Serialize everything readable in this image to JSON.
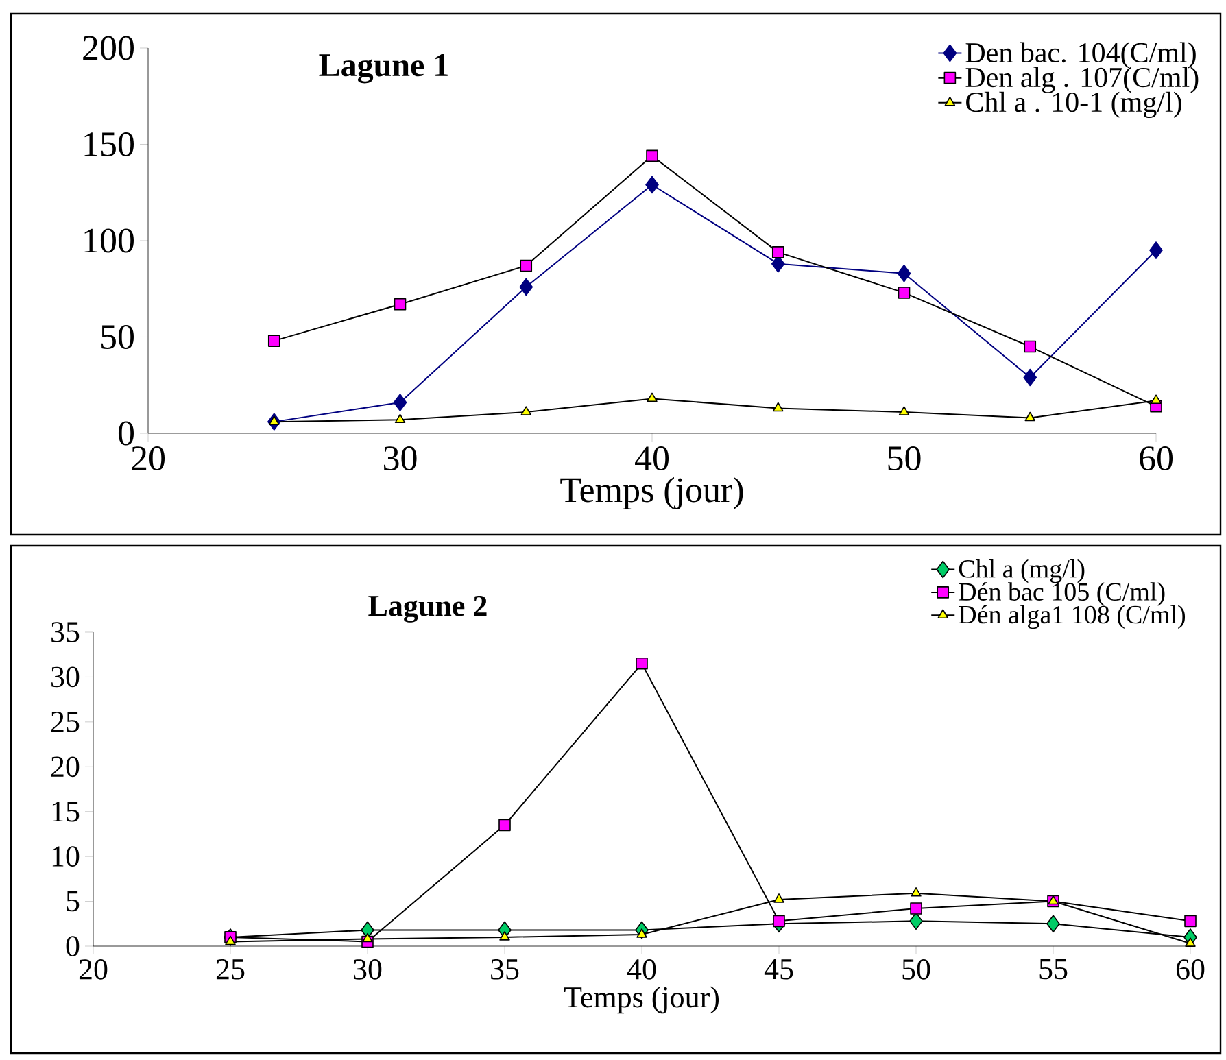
{
  "chart_data": [
    {
      "type": "line",
      "title": "Lagune 1",
      "xlabel": "Temps  (jour)",
      "x": [
        25,
        30,
        35,
        40,
        45,
        50,
        55,
        60
      ],
      "xlim": [
        20,
        60
      ],
      "xticks": [
        20,
        30,
        40,
        50,
        60
      ],
      "ylim": [
        0,
        200
      ],
      "yticks": [
        0,
        50,
        100,
        150,
        200
      ],
      "legend": "top right",
      "series": [
        {
          "name": "Den bac. 104(C/ml)",
          "color": "#000080",
          "marker": "diamond",
          "values": [
            6,
            16,
            76,
            129,
            88,
            83,
            29,
            95
          ]
        },
        {
          "name": "Den alg . 107(C/ml)",
          "color": "#ff00ff",
          "marker": "square",
          "values": [
            48,
            67,
            87,
            144,
            94,
            73,
            45,
            14
          ]
        },
        {
          "name": "Chl a . 10-1 (mg/l)",
          "color": "#ffff00",
          "marker": "triangle",
          "values": [
            6,
            7,
            11,
            18,
            13,
            11,
            8,
            17
          ]
        }
      ]
    },
    {
      "type": "line",
      "title": "Lagune 2",
      "xlabel": "Temps  (jour)",
      "x": [
        25,
        30,
        35,
        40,
        45,
        50,
        55,
        60
      ],
      "xlim": [
        20,
        60
      ],
      "xticks": [
        20,
        25,
        30,
        35,
        40,
        45,
        50,
        55,
        60
      ],
      "ylim": [
        0,
        35
      ],
      "yticks": [
        0,
        5,
        10,
        15,
        20,
        25,
        30,
        35
      ],
      "legend": "top right",
      "series": [
        {
          "name": "Chl a (mg/l)",
          "color": "#00cc66",
          "marker": "diamond",
          "values": [
            1,
            1.8,
            1.8,
            1.8,
            2.5,
            2.8,
            2.5,
            1
          ]
        },
        {
          "name": "Dén  bac 105 (C/ml)",
          "color": "#ff00ff",
          "marker": "square",
          "values": [
            1,
            0.5,
            13.5,
            31.5,
            2.8,
            4.2,
            5,
            2.8
          ]
        },
        {
          "name": "Dén alga1 108 (C/ml)",
          "color": "#ffff00",
          "marker": "triangle",
          "values": [
            0.5,
            0.8,
            1,
            1.3,
            5.2,
            5.9,
            5,
            0.3
          ]
        }
      ]
    }
  ]
}
